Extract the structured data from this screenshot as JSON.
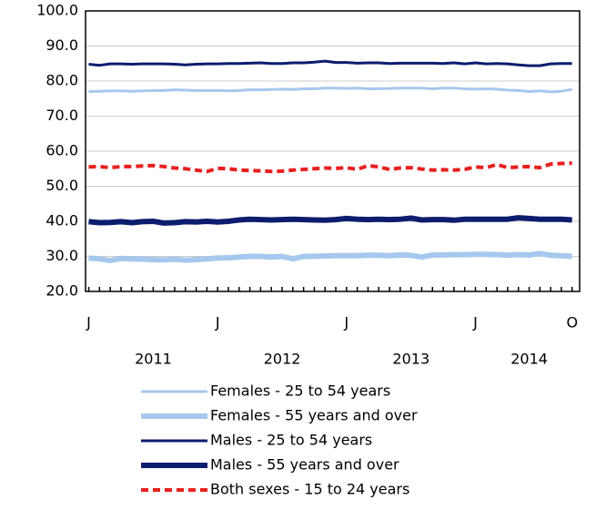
{
  "chart_data": {
    "type": "line",
    "categories": [
      "J",
      null,
      null,
      null,
      null,
      null,
      null,
      null,
      null,
      null,
      null,
      null,
      "J",
      null,
      null,
      null,
      null,
      null,
      null,
      null,
      null,
      null,
      null,
      null,
      "J",
      null,
      null,
      null,
      null,
      null,
      null,
      null,
      null,
      null,
      null,
      null,
      "J",
      null,
      null,
      null,
      null,
      null,
      null,
      null,
      null,
      "O"
    ],
    "year_labels": [
      "2011",
      "2012",
      "2013",
      "2014"
    ],
    "ylim": [
      20,
      100
    ],
    "yticks": [
      {
        "value": 20,
        "label": "20.0"
      },
      {
        "value": 30,
        "label": "30.0"
      },
      {
        "value": 40,
        "label": "40.0"
      },
      {
        "value": 50,
        "label": "50.0"
      },
      {
        "value": 60,
        "label": "60.0"
      },
      {
        "value": 70,
        "label": "70.0"
      },
      {
        "value": 80,
        "label": "80.0"
      },
      {
        "value": 90,
        "label": "90.0"
      },
      {
        "value": 100,
        "label": "100.0"
      }
    ],
    "grid": true,
    "series": [
      {
        "name": "Females - 25 to 54 years",
        "color": "#a6c8ee",
        "line_width": 3,
        "dashed": false,
        "values": [
          77.0,
          77.1,
          77.2,
          77.2,
          77.1,
          77.2,
          77.3,
          77.3,
          77.5,
          77.4,
          77.3,
          77.3,
          77.3,
          77.2,
          77.3,
          77.5,
          77.5,
          77.6,
          77.7,
          77.6,
          77.8,
          77.8,
          78.0,
          78.0,
          77.9,
          78.0,
          77.8,
          77.8,
          77.9,
          78.0,
          78.0,
          78.0,
          77.8,
          78.0,
          78.0,
          77.8,
          77.7,
          77.8,
          77.7,
          77.4,
          77.3,
          77.0,
          77.2,
          76.9,
          77.1,
          77.6
        ]
      },
      {
        "name": "Females - 55 years and over",
        "color": "#a6c8ee",
        "line_width": 6,
        "dashed": false,
        "values": [
          29.5,
          29.3,
          28.8,
          29.4,
          29.3,
          29.2,
          29.1,
          29.0,
          29.2,
          28.9,
          29.1,
          29.3,
          29.5,
          29.6,
          29.8,
          30.0,
          30.0,
          29.8,
          30.0,
          29.3,
          30.0,
          30.0,
          30.1,
          30.2,
          30.2,
          30.2,
          30.3,
          30.3,
          30.2,
          30.4,
          30.3,
          29.8,
          30.4,
          30.4,
          30.5,
          30.5,
          30.6,
          30.6,
          30.5,
          30.3,
          30.5,
          30.4,
          30.8,
          30.3,
          30.2,
          30.0
        ]
      },
      {
        "name": "Males - 25 to 54 years",
        "color": "#0d1d6e",
        "line_width": 3,
        "dashed": false,
        "values": [
          84.8,
          84.5,
          84.9,
          84.9,
          84.8,
          84.9,
          84.9,
          84.9,
          84.8,
          84.6,
          84.8,
          84.9,
          84.9,
          85.0,
          85.0,
          85.1,
          85.2,
          85.0,
          85.0,
          85.2,
          85.2,
          85.4,
          85.7,
          85.3,
          85.3,
          85.1,
          85.2,
          85.2,
          85.0,
          85.1,
          85.1,
          85.1,
          85.1,
          85.0,
          85.2,
          84.9,
          85.2,
          84.9,
          85.0,
          84.9,
          84.6,
          84.4,
          84.4,
          84.9,
          85.0,
          85.0
        ]
      },
      {
        "name": "Males - 55 years and over",
        "color": "#0d1d6e",
        "line_width": 6,
        "dashed": false,
        "values": [
          39.9,
          39.6,
          39.7,
          39.9,
          39.6,
          39.9,
          40.0,
          39.5,
          39.6,
          39.9,
          39.8,
          40.0,
          39.8,
          40.0,
          40.4,
          40.6,
          40.5,
          40.4,
          40.5,
          40.6,
          40.5,
          40.4,
          40.3,
          40.5,
          40.8,
          40.6,
          40.5,
          40.6,
          40.5,
          40.6,
          40.9,
          40.4,
          40.5,
          40.5,
          40.3,
          40.6,
          40.6,
          40.6,
          40.6,
          40.6,
          41.0,
          40.8,
          40.6,
          40.6,
          40.6,
          40.4
        ]
      },
      {
        "name": "Both sexes - 15 to 24 years",
        "color": "#e8201e",
        "line_width": 4,
        "dashed": true,
        "values": [
          55.5,
          55.6,
          55.3,
          55.6,
          55.6,
          55.8,
          55.9,
          55.6,
          55.2,
          55.0,
          54.6,
          54.2,
          55.1,
          55.0,
          54.6,
          54.5,
          54.4,
          54.2,
          54.3,
          54.6,
          54.8,
          55.0,
          55.2,
          55.1,
          55.3,
          54.8,
          55.9,
          55.5,
          54.8,
          55.2,
          55.3,
          54.9,
          54.6,
          54.7,
          54.6,
          54.8,
          55.5,
          55.3,
          56.2,
          55.3,
          55.5,
          55.6,
          55.3,
          56.3,
          56.5,
          56.6
        ]
      }
    ]
  }
}
